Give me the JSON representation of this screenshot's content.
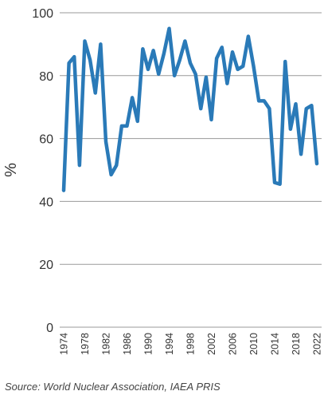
{
  "chart_data": {
    "type": "line",
    "ylabel": "%",
    "xlabel": "",
    "ylim": [
      0,
      100
    ],
    "y_ticks": [
      "0",
      "20",
      "40",
      "60",
      "80",
      "100"
    ],
    "x_ticks": [
      "1974",
      "1978",
      "1982",
      "1986",
      "1990",
      "1994",
      "1998",
      "2002",
      "2006",
      "2010",
      "2014",
      "2018",
      "2022"
    ],
    "grid": "horizontal",
    "line_color": "#2a7ab8",
    "series": [
      {
        "x": [
          1974,
          1975,
          1976,
          1977,
          1978,
          1979,
          1980,
          1981,
          1982,
          1983,
          1984,
          1985,
          1986,
          1987,
          1988,
          1989,
          1990,
          1991,
          1992,
          1993,
          1994,
          1995,
          1996,
          1997,
          1998,
          1999,
          2000,
          2001,
          2002,
          2003,
          2004,
          2005,
          2006,
          2007,
          2008,
          2009,
          2010,
          2011,
          2012,
          2013,
          2014,
          2015,
          2016,
          2017,
          2018,
          2019,
          2020,
          2021,
          2022
        ],
        "values": [
          43.5,
          84,
          86,
          51.5,
          91,
          85,
          74.5,
          90,
          59,
          48.5,
          51.5,
          64,
          64,
          73,
          65.5,
          88.5,
          82,
          88,
          80.5,
          87,
          95,
          80,
          85,
          91,
          84,
          80.5,
          69.5,
          79.5,
          66,
          85.5,
          89,
          77.5,
          87.5,
          82,
          83,
          92.5,
          83,
          72,
          72,
          69.5,
          46,
          45.5,
          84.5,
          63,
          71,
          55,
          69.5,
          70.5,
          52
        ]
      }
    ]
  },
  "source": "Source: World Nuclear Association, IAEA PRIS"
}
